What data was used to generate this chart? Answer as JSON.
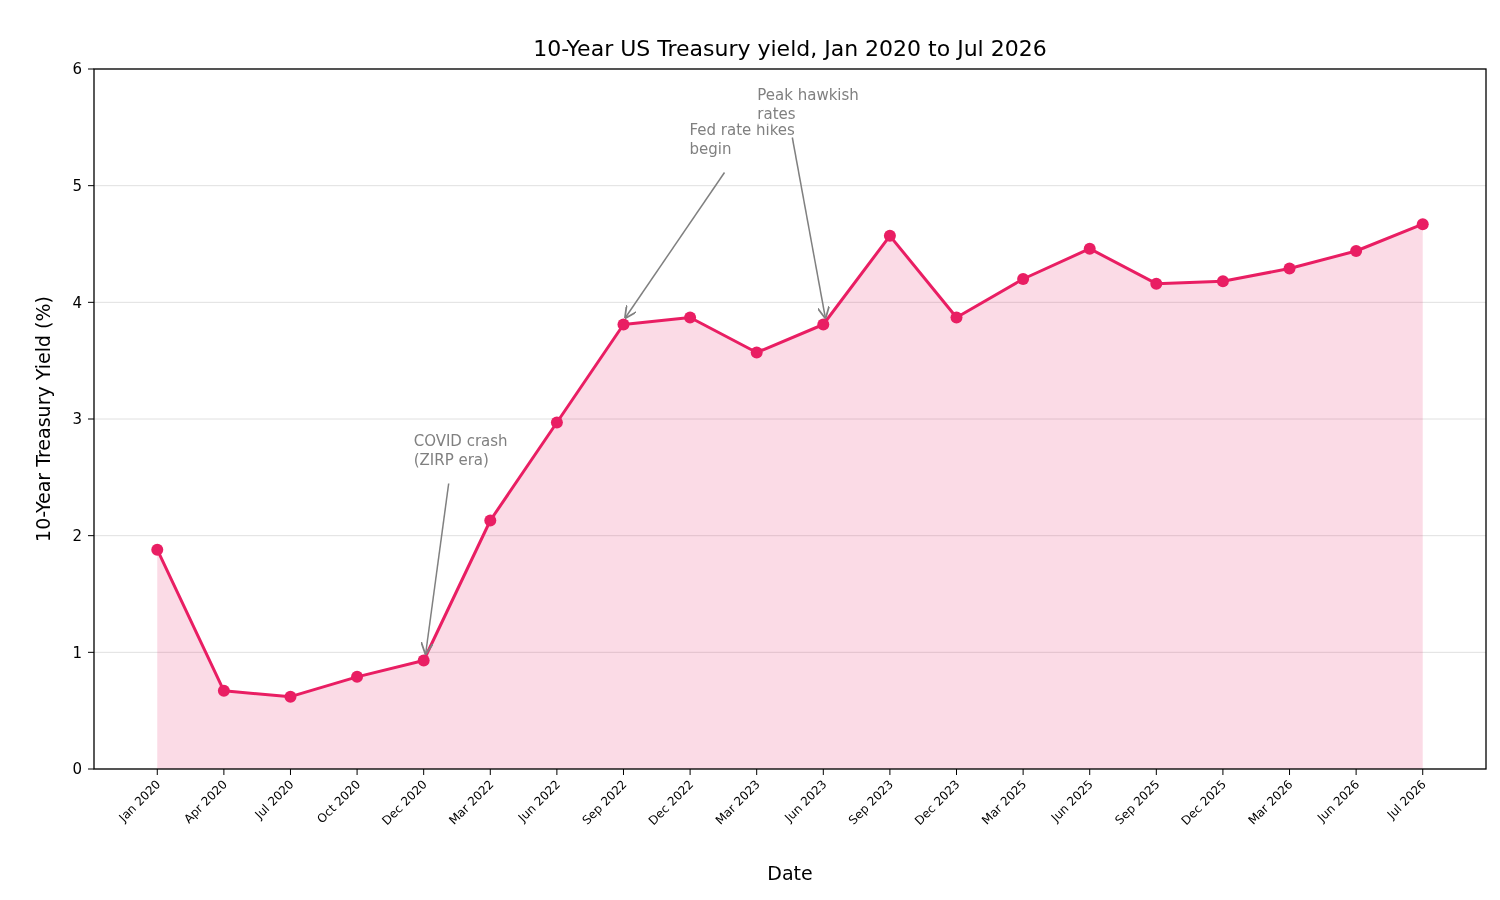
{
  "chart_data": {
    "type": "area",
    "title": "10-Year US Treasury yield, Jan 2020 to Jul 2026",
    "xlabel": "Date",
    "ylabel": "10-Year Treasury Yield (%)",
    "categories": [
      "Jan 2020",
      "Apr 2020",
      "Jul 2020",
      "Oct 2020",
      "Dec 2020",
      "Mar 2022",
      "Jun 2022",
      "Sep 2022",
      "Dec 2022",
      "Mar 2023",
      "Jun 2023",
      "Sep 2023",
      "Dec 2023",
      "Mar 2025",
      "Jun 2025",
      "Sep 2025",
      "Dec 2025",
      "Mar 2026",
      "Jun 2026",
      "Jul 2026"
    ],
    "series": [
      {
        "color": "#e91e63",
        "values": [
          1.88,
          0.67,
          0.62,
          0.79,
          0.93,
          2.13,
          2.97,
          3.81,
          3.87,
          3.57,
          3.81,
          4.57,
          3.87,
          4.2,
          4.46,
          4.16,
          4.18,
          4.29,
          4.44,
          4.67
        ]
      }
    ],
    "ylim": [
      0,
      6
    ],
    "yticks": [
      0,
      1,
      2,
      3,
      4,
      5,
      6
    ],
    "grid": "y",
    "marker": "circle",
    "line_style": "solid",
    "annotations": [
      {
        "text": "COVID crash\n(ZIRP era)",
        "x": "Dec 2020",
        "y": 0.93
      },
      {
        "text": "Fed rate hikes\nbegin",
        "x": "Sep 2022",
        "y": 3.81
      },
      {
        "text": "Peak hawkish\nrates",
        "x": "Jun 2023",
        "y": 3.81
      }
    ]
  }
}
